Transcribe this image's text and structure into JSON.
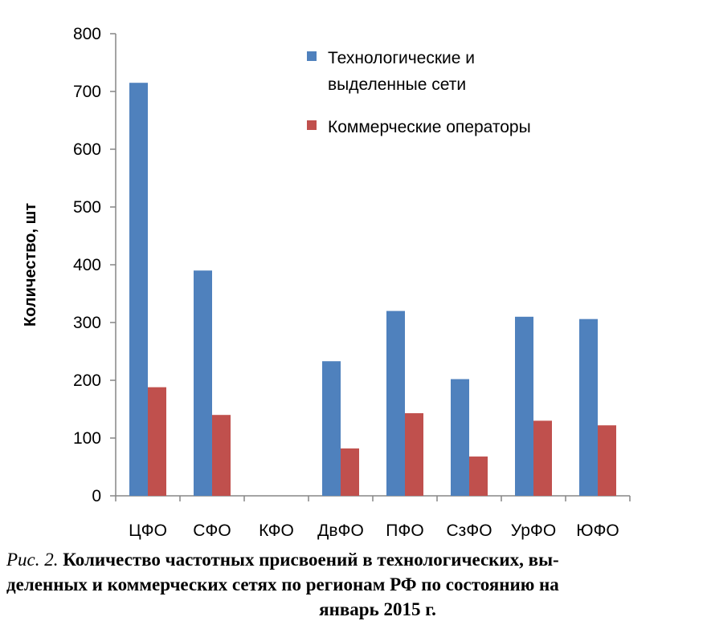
{
  "chart_data": {
    "type": "bar",
    "ylabel": "Количество, шт",
    "xlabel": "",
    "ylim": [
      0,
      800
    ],
    "yticks": [
      0,
      100,
      200,
      300,
      400,
      500,
      600,
      700,
      800
    ],
    "categories": [
      "ЦФО",
      "СФО",
      "КФО",
      "ДвФО",
      "ПФО",
      "СзФО",
      "УрФО",
      "ЮФО"
    ],
    "series": [
      {
        "name": "Технологические и выделенные сети",
        "legend_lines": [
          "Технологические и",
          "выделенные сети"
        ],
        "color": "#4F81BD",
        "values": [
          715,
          390,
          0,
          233,
          320,
          202,
          310,
          306
        ]
      },
      {
        "name": "Коммерческие операторы",
        "legend_lines": [
          "Коммерческие операторы"
        ],
        "color": "#C0504D",
        "values": [
          188,
          140,
          0,
          82,
          143,
          68,
          130,
          122
        ]
      }
    ],
    "legend_position": "top-right",
    "grid": false
  },
  "caption": {
    "fig_label": "Рис. 2.",
    "line1": "Количество частотных присвоений в технологических, вы-",
    "line2": "деленных и коммерческих сетях по регионам РФ по состоянию на",
    "line3": "январь 2015 г."
  }
}
